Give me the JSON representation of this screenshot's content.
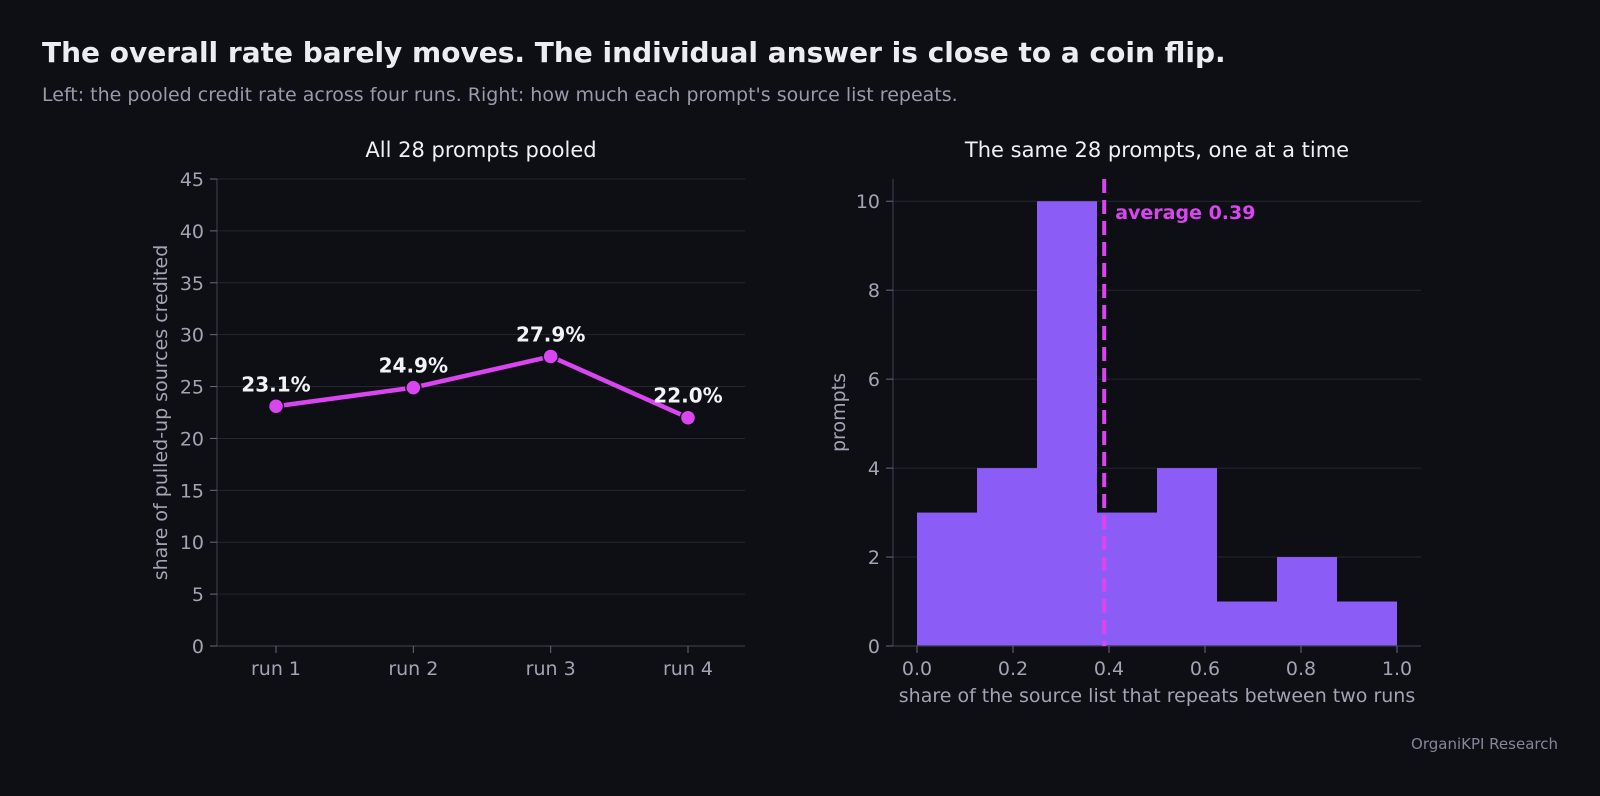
{
  "header": {
    "title": "The overall rate barely moves. The individual answer is close to a coin flip.",
    "subtitle": "Left: the pooled credit rate across four runs. Right: how much each prompt's source list repeats."
  },
  "footer": {
    "credit": "OrganiKPI Research"
  },
  "colors": {
    "background": "#0e0e15",
    "line": "#d946ef",
    "bar": "#8b5cf6",
    "average": "#d946ef",
    "grid": "#262632"
  },
  "chart_data": [
    {
      "type": "line",
      "title": "All 28 prompts pooled",
      "xlabel": "",
      "ylabel": "share of pulled-up sources credited",
      "categories": [
        "run 1",
        "run 2",
        "run 3",
        "run 4"
      ],
      "values": [
        23.1,
        24.9,
        27.9,
        22.0
      ],
      "data_labels": [
        "23.1%",
        "24.9%",
        "27.9%",
        "22.0%"
      ],
      "ylim": [
        0,
        45
      ],
      "yticks": [
        0,
        5,
        10,
        15,
        20,
        25,
        30,
        35,
        40,
        45
      ],
      "grid": true
    },
    {
      "type": "bar",
      "subtype": "histogram",
      "title": "The same 28 prompts, one at a time",
      "xlabel": "share of the source list that repeats between two runs",
      "ylabel": "prompts",
      "bin_edges": [
        0,
        0.125,
        0.25,
        0.375,
        0.5,
        0.625,
        0.75,
        0.875,
        1.0
      ],
      "counts": [
        3,
        4,
        10,
        3,
        4,
        1,
        2,
        1
      ],
      "xlim": [
        -0.05,
        1.05
      ],
      "ylim": [
        0,
        10.5
      ],
      "xticks": [
        0.0,
        0.2,
        0.4,
        0.6,
        0.8,
        1.0
      ],
      "xtick_labels": [
        "0.0",
        "0.2",
        "0.4",
        "0.6",
        "0.8",
        "1.0"
      ],
      "yticks": [
        0,
        2,
        4,
        6,
        8,
        10
      ],
      "average": {
        "value": 0.39,
        "label": "average 0.39"
      },
      "grid": true
    }
  ]
}
